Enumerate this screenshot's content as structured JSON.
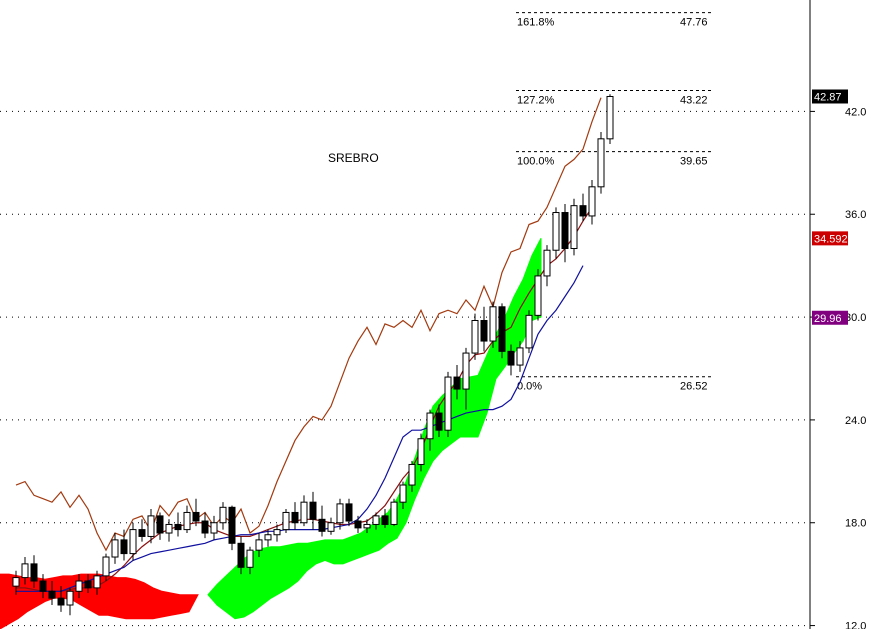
{
  "chart_data": {
    "type": "candlestick",
    "title": "SREBRO",
    "ylim": [
      11.8,
      48.5
    ],
    "y_ticks": [
      12.0,
      18.0,
      24.0,
      30.0,
      36.0,
      42.0
    ],
    "y_tick_labels": [
      "12.0",
      "18.0",
      "24.0",
      "30.0",
      "36.0",
      "42.0"
    ],
    "grid": "horizontal-dotted",
    "bars": [
      [
        14.3,
        15.2,
        13.8,
        14.8
      ],
      [
        14.8,
        16.0,
        14.4,
        15.6
      ],
      [
        15.6,
        16.1,
        14.2,
        14.6
      ],
      [
        14.6,
        15.0,
        13.6,
        14.0
      ],
      [
        14.0,
        14.6,
        13.2,
        13.6
      ],
      [
        13.6,
        14.3,
        12.8,
        13.2
      ],
      [
        13.2,
        14.2,
        12.6,
        14.0
      ],
      [
        14.0,
        15.0,
        13.6,
        14.6
      ],
      [
        14.6,
        15.0,
        13.9,
        14.2
      ],
      [
        14.2,
        15.2,
        13.8,
        14.9
      ],
      [
        14.9,
        16.2,
        14.6,
        16.0
      ],
      [
        16.0,
        17.4,
        15.6,
        17.0
      ],
      [
        17.0,
        17.6,
        15.8,
        16.2
      ],
      [
        16.2,
        18.0,
        15.8,
        17.6
      ],
      [
        17.6,
        18.2,
        16.9,
        17.2
      ],
      [
        17.2,
        18.8,
        16.8,
        18.4
      ],
      [
        18.4,
        18.6,
        17.0,
        17.4
      ],
      [
        17.4,
        18.2,
        16.9,
        17.9
      ],
      [
        17.9,
        18.6,
        17.2,
        17.6
      ],
      [
        17.6,
        19.0,
        17.4,
        18.6
      ],
      [
        18.6,
        19.4,
        17.8,
        18.1
      ],
      [
        18.1,
        18.6,
        17.1,
        17.4
      ],
      [
        17.4,
        18.4,
        17.0,
        18.0
      ],
      [
        18.0,
        19.2,
        17.6,
        18.9
      ],
      [
        18.9,
        19.0,
        16.4,
        16.8
      ],
      [
        16.8,
        17.2,
        15.0,
        15.4
      ],
      [
        15.4,
        16.6,
        15.0,
        16.4
      ],
      [
        16.4,
        17.4,
        16.0,
        17.0
      ],
      [
        17.0,
        17.6,
        16.6,
        17.3
      ],
      [
        17.3,
        17.9,
        16.9,
        17.6
      ],
      [
        17.6,
        18.8,
        17.4,
        18.6
      ],
      [
        18.6,
        19.2,
        17.6,
        18.0
      ],
      [
        18.0,
        19.6,
        17.8,
        19.2
      ],
      [
        19.2,
        19.8,
        17.6,
        18.2
      ],
      [
        18.2,
        19.0,
        17.2,
        17.5
      ],
      [
        17.5,
        18.3,
        17.3,
        18.0
      ],
      [
        18.0,
        19.4,
        17.6,
        19.1
      ],
      [
        19.1,
        19.4,
        17.8,
        18.1
      ],
      [
        18.1,
        18.4,
        17.4,
        17.7
      ],
      [
        17.7,
        18.2,
        17.4,
        17.9
      ],
      [
        17.9,
        18.6,
        17.6,
        18.4
      ],
      [
        18.4,
        18.8,
        17.7,
        17.9
      ],
      [
        17.9,
        19.4,
        17.8,
        19.2
      ],
      [
        19.2,
        20.4,
        18.8,
        20.2
      ],
      [
        20.2,
        21.6,
        19.8,
        21.4
      ],
      [
        21.4,
        23.2,
        21.0,
        22.9
      ],
      [
        22.9,
        24.6,
        22.2,
        24.4
      ],
      [
        24.4,
        24.9,
        23.0,
        23.4
      ],
      [
        23.4,
        26.8,
        23.0,
        26.5
      ],
      [
        26.5,
        27.2,
        25.2,
        25.8
      ],
      [
        25.8,
        28.2,
        24.6,
        27.9
      ],
      [
        27.9,
        30.2,
        27.5,
        29.8
      ],
      [
        29.8,
        30.6,
        28.0,
        28.6
      ],
      [
        28.6,
        30.9,
        28.2,
        30.6
      ],
      [
        30.6,
        30.8,
        27.6,
        28.0
      ],
      [
        28.0,
        28.4,
        26.6,
        27.2
      ],
      [
        27.2,
        28.6,
        26.8,
        28.2
      ],
      [
        28.2,
        30.4,
        27.9,
        30.1
      ],
      [
        30.1,
        32.8,
        29.8,
        32.4
      ],
      [
        32.4,
        34.2,
        31.8,
        33.9
      ],
      [
        33.9,
        36.4,
        33.4,
        36.1
      ],
      [
        36.1,
        36.6,
        33.2,
        34.0
      ],
      [
        34.0,
        36.9,
        33.6,
        36.5
      ],
      [
        36.5,
        37.2,
        35.6,
        35.9
      ],
      [
        35.9,
        38.0,
        35.4,
        37.6
      ],
      [
        37.6,
        40.8,
        37.2,
        40.4
      ],
      [
        40.4,
        43.0,
        40.1,
        42.87
      ]
    ],
    "series": [
      {
        "name": "",
        "color": "#a33a10",
        "values": [
          20.2,
          20.4,
          19.6,
          19.4,
          19.2,
          19.8,
          18.9,
          19.6,
          18.8,
          17.4,
          16.4,
          17.4,
          17.2,
          18.2,
          18.4,
          17.5,
          19.0,
          18.4,
          19.2,
          19.4,
          18.2,
          18.6,
          17.8,
          18.4,
          18.0,
          18.8,
          17.4,
          17.8,
          19.0,
          20.4,
          21.6,
          22.8,
          23.6,
          24.2,
          24.0,
          24.8,
          26.2,
          27.6,
          28.6,
          29.4,
          28.4,
          29.6,
          29.4,
          29.8,
          29.4,
          30.4,
          29.2,
          30.2,
          30.4,
          30.2,
          31.0,
          30.4,
          31.8,
          30.6,
          32.6,
          33.8,
          34.0,
          35.4,
          35.6,
          36.4,
          37.6,
          38.8,
          39.2,
          39.8,
          41.4,
          42.8
        ]
      },
      {
        "name": "",
        "color": "#8b1010",
        "values": [
          14.2,
          14.2,
          14.1,
          14.0,
          14.0,
          14.0,
          14.1,
          14.2,
          14.2,
          14.3,
          14.6,
          15.0,
          15.5,
          16.1,
          16.6,
          17.0,
          17.4,
          17.6,
          17.8,
          17.9,
          18.0,
          18.0,
          17.6,
          17.4,
          17.2,
          17.2,
          17.2,
          17.4,
          17.6,
          17.8,
          18.0,
          18.1,
          18.2,
          18.2,
          18.1,
          18.0,
          17.9,
          17.9,
          18.0,
          18.1,
          18.5,
          19.0,
          19.8,
          20.6,
          21.2,
          22.2,
          23.6,
          24.8,
          25.6,
          26.2,
          27.2,
          27.8,
          27.9,
          28.6,
          29.1,
          29.4,
          30.5,
          31.4,
          32.2,
          33.0,
          33.4,
          34.0,
          34.7,
          35.6,
          36.4
        ]
      },
      {
        "name": "",
        "color": "#1010a0",
        "values": [
          14.0,
          14.0,
          14.0,
          14.0,
          14.0,
          14.0,
          14.2,
          14.4,
          14.6,
          14.8,
          15.0,
          15.2,
          15.4,
          15.8,
          16.0,
          16.2,
          16.3,
          16.4,
          16.5,
          16.6,
          16.7,
          16.8,
          17.0,
          17.1,
          17.2,
          17.3,
          17.3,
          17.4,
          17.5,
          17.5,
          17.6,
          17.6,
          17.6,
          17.6,
          17.6,
          17.7,
          17.8,
          17.9,
          18.2,
          18.8,
          19.6,
          20.6,
          21.8,
          23.0,
          23.4,
          23.4,
          23.6,
          23.8,
          24.0,
          24.2,
          24.4,
          24.5,
          24.6,
          24.6,
          24.8,
          25.2,
          26.2,
          27.6,
          29.0,
          29.8,
          30.4,
          31.2,
          32.0,
          33.0
        ]
      }
    ],
    "cloud_red": {
      "span_a": [
        15.0,
        15.0,
        14.9,
        14.8,
        14.8,
        14.7,
        14.8,
        14.9,
        14.9,
        15.0,
        15.0,
        15.0,
        14.9,
        14.8,
        14.8,
        14.7,
        14.5,
        14.2,
        14.0,
        13.9,
        13.8,
        13.8,
        13.8
      ],
      "span_b": [
        11.8,
        12.1,
        12.4,
        12.8,
        13.1,
        13.4,
        13.6,
        13.6,
        13.5,
        13.2,
        12.9,
        12.6,
        12.6,
        12.5,
        12.4,
        12.4,
        12.4,
        12.4,
        12.5,
        12.6,
        12.7,
        12.8,
        13.8
      ]
    },
    "cloud_green": {
      "span_a": [
        13.8,
        14.4,
        14.9,
        15.4,
        15.9,
        16.3,
        16.5,
        16.6,
        16.6,
        16.7,
        16.8,
        16.8,
        16.9,
        17.0,
        17.0,
        17.0,
        17.2,
        17.4,
        17.8,
        18.2,
        18.6,
        19.4,
        20.4,
        21.8,
        23.4,
        24.8,
        25.4,
        25.9,
        26.4,
        26.5,
        26.6,
        27.8,
        29.0,
        30.0,
        31.2,
        32.2,
        33.6,
        34.6
      ],
      "span_b": [
        13.8,
        13.2,
        12.8,
        12.4,
        12.5,
        12.8,
        13.2,
        13.6,
        13.9,
        14.2,
        14.6,
        15.2,
        15.6,
        15.8,
        15.6,
        15.6,
        15.8,
        16.0,
        16.2,
        16.4,
        16.8,
        17.1,
        18.0,
        19.4,
        20.6,
        21.6,
        22.2,
        22.6,
        23.0,
        23.0,
        23.0,
        24.4,
        26.4,
        27.1,
        27.9,
        28.6,
        29.8,
        30.0
      ]
    },
    "fibonacci": [
      {
        "label": "161.8%",
        "value": 47.76,
        "value_label": "47.76"
      },
      {
        "label": "127.2%",
        "value": 43.22,
        "value_label": "43.22"
      },
      {
        "label": "100.0%",
        "value": 39.65,
        "value_label": "39.65"
      },
      {
        "label": "0.0%",
        "value": 26.52,
        "value_label": "26.52"
      }
    ],
    "price_badges": [
      {
        "label": "42.87",
        "value": 42.87,
        "color": "#000000"
      },
      {
        "label": "34.5925",
        "value": 34.5925,
        "color": "#cc0000"
      },
      {
        "label": "29.96",
        "value": 29.96,
        "color": "#800080"
      }
    ]
  }
}
